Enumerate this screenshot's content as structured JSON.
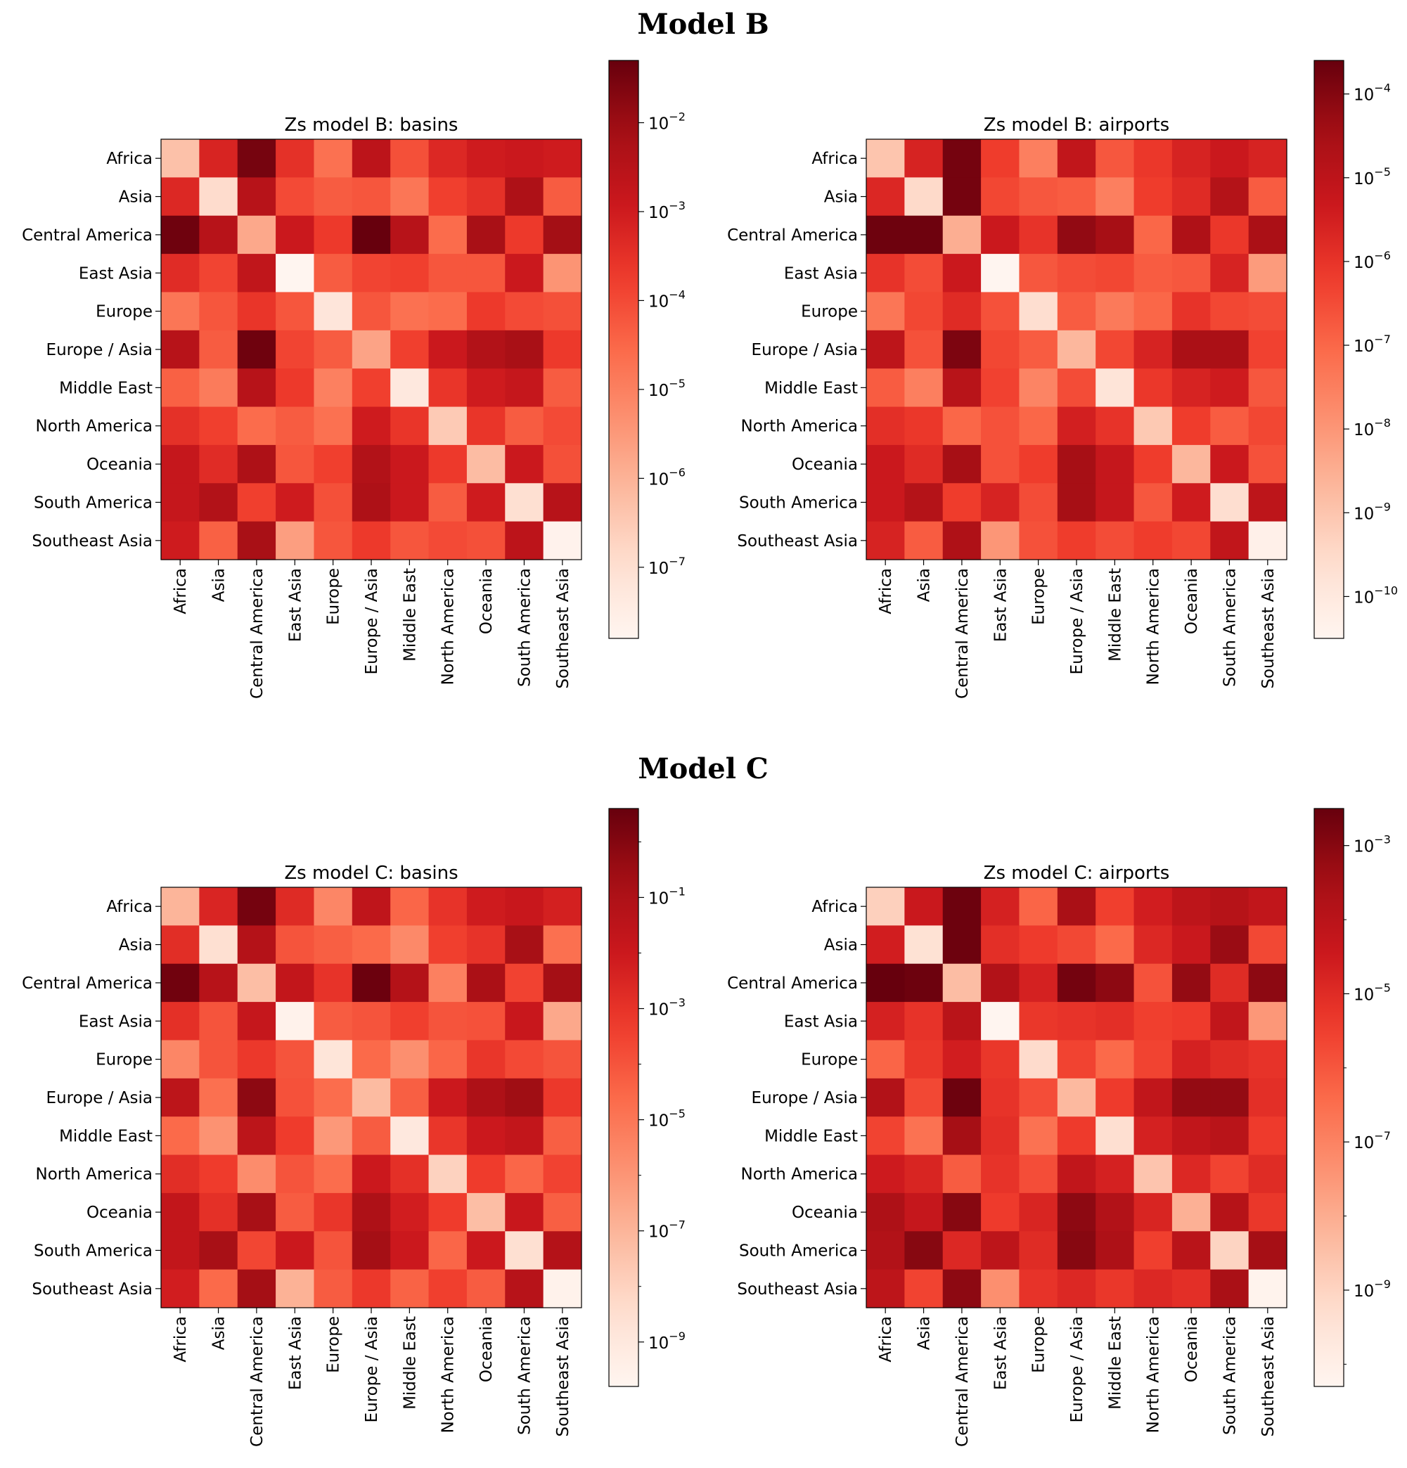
{
  "sections": [
    {
      "title": "Model B"
    },
    {
      "title": "Model C"
    }
  ],
  "colormap": {
    "name": "Reds",
    "stops": [
      "#fff5f0",
      "#fee0d2",
      "#fcbba1",
      "#fc9272",
      "#fb6a4a",
      "#ef3b2c",
      "#cb181d",
      "#a50f15",
      "#67000d"
    ]
  },
  "chart_data": [
    {
      "type": "heatmap",
      "title": "Zs model B: basins",
      "section": "Model B",
      "log_scale": true,
      "categories": [
        "Africa",
        "Asia",
        "Central America",
        "East Asia",
        "Europe",
        "Europe / Asia",
        "Middle East",
        "North America",
        "Oceania",
        "South America",
        "Southeast Asia"
      ],
      "colorbar_range": [
        -7.8,
        -1.3
      ],
      "colorbar_ticks": [
        -7,
        -6,
        -5,
        -4,
        -3,
        -2
      ],
      "log10_values": [
        [
          -6.3,
          -3.2,
          -1.5,
          -3.5,
          -4.7,
          -2.6,
          -4.1,
          -3.3,
          -3.0,
          -2.9,
          -3.0
        ],
        [
          -3.3,
          -6.9,
          -2.5,
          -4.0,
          -4.3,
          -4.2,
          -4.8,
          -3.8,
          -3.5,
          -2.3,
          -4.3
        ],
        [
          -1.4,
          -2.5,
          -5.8,
          -2.9,
          -3.7,
          -1.3,
          -2.5,
          -4.6,
          -2.2,
          -3.7,
          -2.1
        ],
        [
          -3.4,
          -3.9,
          -2.7,
          -7.8,
          -4.3,
          -3.9,
          -3.8,
          -4.2,
          -4.2,
          -2.9,
          -5.4
        ],
        [
          -4.8,
          -4.2,
          -3.6,
          -4.2,
          -7.2,
          -4.2,
          -4.7,
          -4.6,
          -3.7,
          -4.0,
          -4.1
        ],
        [
          -2.5,
          -4.3,
          -1.4,
          -3.9,
          -4.3,
          -5.7,
          -3.8,
          -2.9,
          -2.4,
          -2.2,
          -3.7
        ],
        [
          -4.4,
          -4.9,
          -2.5,
          -3.7,
          -5.0,
          -3.8,
          -7.3,
          -3.6,
          -3.0,
          -2.8,
          -4.3
        ],
        [
          -3.5,
          -3.8,
          -4.6,
          -4.3,
          -4.7,
          -3.0,
          -3.6,
          -6.5,
          -3.6,
          -4.3,
          -4.0
        ],
        [
          -2.8,
          -3.4,
          -2.3,
          -4.2,
          -3.8,
          -2.4,
          -2.9,
          -3.7,
          -6.2,
          -2.9,
          -4.1
        ],
        [
          -2.8,
          -2.4,
          -3.8,
          -3.0,
          -4.1,
          -2.3,
          -2.9,
          -4.3,
          -3.0,
          -7.0,
          -2.5
        ],
        [
          -3.0,
          -4.4,
          -2.2,
          -5.6,
          -4.2,
          -3.7,
          -4.2,
          -4.0,
          -4.1,
          -2.6,
          -7.7
        ]
      ]
    },
    {
      "type": "heatmap",
      "title": "Zs model B: airports",
      "section": "Model B",
      "log_scale": true,
      "categories": [
        "Africa",
        "Asia",
        "Central America",
        "East Asia",
        "Europe",
        "Europe / Asia",
        "Middle East",
        "North America",
        "Oceania",
        "South America",
        "Southeast Asia"
      ],
      "colorbar_range": [
        -10.5,
        -3.6
      ],
      "colorbar_ticks": [
        -10,
        -9,
        -8,
        -7,
        -6,
        -5,
        -4
      ],
      "log10_values": [
        [
          -9.0,
          -5.6,
          -3.8,
          -6.2,
          -7.5,
          -5.1,
          -6.7,
          -6.1,
          -5.6,
          -5.3,
          -5.6
        ],
        [
          -5.7,
          -9.5,
          -3.8,
          -6.4,
          -6.7,
          -6.8,
          -7.5,
          -6.2,
          -5.8,
          -4.8,
          -6.8
        ],
        [
          -3.7,
          -3.7,
          -8.5,
          -5.3,
          -6.0,
          -4.2,
          -4.5,
          -7.0,
          -4.7,
          -6.1,
          -4.6
        ],
        [
          -6.0,
          -6.5,
          -5.3,
          -10.5,
          -6.7,
          -6.5,
          -6.4,
          -6.8,
          -6.7,
          -5.6,
          -8.1
        ],
        [
          -7.3,
          -6.4,
          -5.8,
          -6.6,
          -9.6,
          -6.8,
          -7.4,
          -7.0,
          -6.0,
          -6.4,
          -6.5
        ],
        [
          -5.0,
          -6.6,
          -3.9,
          -6.4,
          -6.8,
          -8.7,
          -6.4,
          -5.6,
          -4.6,
          -4.6,
          -6.3
        ],
        [
          -6.8,
          -7.5,
          -4.9,
          -6.3,
          -7.6,
          -6.5,
          -9.8,
          -6.1,
          -5.6,
          -5.4,
          -6.7
        ],
        [
          -5.9,
          -6.1,
          -7.0,
          -6.6,
          -7.0,
          -5.5,
          -6.0,
          -9.1,
          -6.2,
          -6.8,
          -6.4
        ],
        [
          -5.3,
          -5.8,
          -4.5,
          -6.6,
          -6.2,
          -4.5,
          -5.2,
          -6.2,
          -8.7,
          -5.3,
          -6.6
        ],
        [
          -5.3,
          -4.8,
          -6.2,
          -5.6,
          -6.5,
          -4.5,
          -5.2,
          -6.7,
          -5.4,
          -9.6,
          -5.0
        ],
        [
          -5.6,
          -6.8,
          -4.7,
          -8.0,
          -6.6,
          -6.2,
          -6.5,
          -6.2,
          -6.4,
          -5.1,
          -10.3
        ]
      ]
    },
    {
      "type": "heatmap",
      "title": "Zs model C: basins",
      "section": "Model C",
      "log_scale": true,
      "categories": [
        "Africa",
        "Asia",
        "Central America",
        "East Asia",
        "Europe",
        "Europe / Asia",
        "Middle East",
        "North America",
        "Oceania",
        "South America",
        "Southeast Asia"
      ],
      "colorbar_range": [
        -9.8,
        0.6
      ],
      "colorbar_ticks": [
        -9,
        -7,
        -5,
        -3,
        -1
      ],
      "log10_values": [
        [
          -7.0,
          -2.5,
          0.3,
          -2.7,
          -5.5,
          -1.6,
          -4.5,
          -3.0,
          -2.1,
          -1.9,
          -2.3
        ],
        [
          -2.8,
          -8.5,
          -1.2,
          -4.0,
          -4.3,
          -4.6,
          -5.6,
          -3.4,
          -3.0,
          -0.8,
          -4.8
        ],
        [
          0.4,
          -1.3,
          -7.3,
          -1.7,
          -3.0,
          0.5,
          -1.2,
          -5.3,
          -0.9,
          -3.5,
          -0.7
        ],
        [
          -2.9,
          -4.0,
          -1.8,
          -9.6,
          -4.2,
          -4.0,
          -3.4,
          -4.0,
          -3.9,
          -1.9,
          -6.6
        ],
        [
          -5.5,
          -4.0,
          -3.2,
          -4.0,
          -8.8,
          -4.6,
          -5.8,
          -4.5,
          -3.1,
          -3.7,
          -4.0
        ],
        [
          -1.5,
          -4.8,
          -0.2,
          -3.9,
          -4.7,
          -7.2,
          -4.3,
          -2.0,
          -1.0,
          -0.6,
          -3.2
        ],
        [
          -4.6,
          -5.9,
          -1.5,
          -3.3,
          -6.1,
          -4.2,
          -9.0,
          -3.1,
          -2.0,
          -1.7,
          -4.3
        ],
        [
          -2.8,
          -3.3,
          -5.7,
          -4.0,
          -4.7,
          -2.0,
          -2.9,
          -8.0,
          -3.3,
          -4.5,
          -3.5
        ],
        [
          -1.7,
          -2.9,
          -0.8,
          -4.2,
          -3.1,
          -1.0,
          -2.2,
          -3.3,
          -7.3,
          -1.9,
          -4.3
        ],
        [
          -1.7,
          -0.8,
          -3.6,
          -2.0,
          -4.0,
          -0.7,
          -2.0,
          -4.5,
          -2.0,
          -8.5,
          -1.2
        ],
        [
          -2.2,
          -4.6,
          -0.7,
          -6.9,
          -4.2,
          -3.2,
          -4.4,
          -3.4,
          -4.2,
          -1.3,
          -9.6
        ]
      ]
    },
    {
      "type": "heatmap",
      "title": "Zs model C: airports",
      "section": "Model C",
      "log_scale": true,
      "categories": [
        "Africa",
        "Asia",
        "Central America",
        "East Asia",
        "Europe",
        "Europe / Asia",
        "Middle East",
        "North America",
        "Oceania",
        "South America",
        "Southeast Asia"
      ],
      "colorbar_range": [
        -10.3,
        -2.5
      ],
      "colorbar_ticks": [
        -9,
        -7,
        -5,
        -3
      ],
      "log10_values": [
        [
          -8.9,
          -4.4,
          -2.6,
          -4.7,
          -6.3,
          -3.6,
          -5.5,
          -4.6,
          -4.1,
          -3.9,
          -4.2
        ],
        [
          -4.6,
          -9.4,
          -2.6,
          -5.1,
          -5.4,
          -5.7,
          -6.4,
          -4.9,
          -4.4,
          -3.3,
          -5.7
        ],
        [
          -2.5,
          -2.6,
          -8.4,
          -3.8,
          -4.7,
          -2.7,
          -3.1,
          -5.9,
          -3.2,
          -5.0,
          -3.1
        ],
        [
          -4.7,
          -5.2,
          -4.0,
          -10.3,
          -5.3,
          -5.2,
          -5.1,
          -5.5,
          -5.4,
          -4.2,
          -7.5
        ],
        [
          -6.3,
          -5.3,
          -4.6,
          -5.3,
          -9.2,
          -5.6,
          -6.4,
          -5.6,
          -4.7,
          -5.0,
          -5.2
        ],
        [
          -3.8,
          -5.7,
          -2.6,
          -5.2,
          -5.8,
          -8.3,
          -5.4,
          -4.2,
          -3.2,
          -3.2,
          -5.1
        ],
        [
          -5.6,
          -6.6,
          -3.5,
          -5.1,
          -6.6,
          -5.4,
          -9.3,
          -4.7,
          -4.2,
          -4.0,
          -5.4
        ],
        [
          -4.5,
          -4.8,
          -6.1,
          -5.2,
          -5.8,
          -4.2,
          -4.7,
          -8.6,
          -4.9,
          -5.6,
          -5.0
        ],
        [
          -3.7,
          -4.3,
          -3.0,
          -5.4,
          -4.8,
          -3.1,
          -3.8,
          -4.8,
          -8.1,
          -3.9,
          -5.3
        ],
        [
          -3.8,
          -3.0,
          -4.9,
          -4.1,
          -5.0,
          -3.0,
          -3.7,
          -5.5,
          -4.0,
          -9.0,
          -3.5
        ],
        [
          -4.1,
          -5.6,
          -3.1,
          -7.3,
          -5.2,
          -4.9,
          -5.3,
          -4.9,
          -5.1,
          -3.6,
          -10.2
        ]
      ]
    }
  ]
}
